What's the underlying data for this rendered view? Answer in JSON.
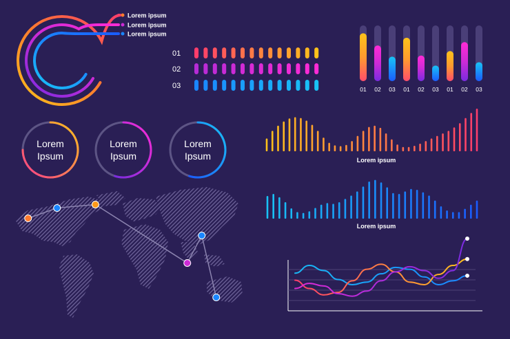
{
  "colors": {
    "background": "#2a1f55",
    "orange": "#ff7a2f",
    "yellow": "#ffc21a",
    "magenta": "#cc2bd6",
    "pink": "#ff3d8b",
    "blue": "#1a86ff",
    "cyan": "#19c3f5",
    "track": "#4a3f78",
    "map": "#5a4f86"
  },
  "chart_data": [
    {
      "type": "radial-bar",
      "legend": [
        {
          "name": "Lorem ipsum",
          "color": "#ff7a2f"
        },
        {
          "name": "Lorem ipsum",
          "color": "#cc2bd6"
        },
        {
          "name": "Lorem ipsum",
          "color": "#1a86ff"
        }
      ],
      "values": [
        0.9,
        0.8,
        0.72
      ]
    },
    {
      "type": "dot-progress",
      "rows": [
        {
          "label": "01",
          "dots": 14,
          "gradient": [
            "#ff3d6b",
            "#ffc21a"
          ]
        },
        {
          "label": "02",
          "dots": 14,
          "gradient": [
            "#b62bd6",
            "#ff2bd6"
          ]
        },
        {
          "label": "03",
          "dots": 14,
          "gradient": [
            "#1a86ff",
            "#19c3f5"
          ]
        }
      ]
    },
    {
      "type": "bar",
      "categories": [
        "01",
        "02",
        "03",
        "01",
        "02",
        "03",
        "01",
        "02",
        "03"
      ],
      "values": [
        0.86,
        0.64,
        0.44,
        0.78,
        0.46,
        0.28,
        0.54,
        0.7,
        0.34
      ],
      "colors": [
        "orange",
        "magenta",
        "blue",
        "orange",
        "magenta",
        "blue",
        "orange",
        "magenta",
        "blue"
      ],
      "ylim": [
        0,
        1
      ]
    },
    {
      "type": "donut",
      "items": [
        {
          "label_line1": "Lorem",
          "label_line2": "Ipsum",
          "value": 0.75,
          "gradient": [
            "#ff3d8b",
            "#ffc21a"
          ]
        },
        {
          "label_line1": "Lorem",
          "label_line2": "Ipsum",
          "value": 0.55,
          "gradient": [
            "#7a2be0",
            "#ff2bd6"
          ]
        },
        {
          "label_line1": "Lorem",
          "label_line2": "Ipsum",
          "value": 0.55,
          "gradient": [
            "#1a5cff",
            "#19c3f5"
          ]
        }
      ]
    },
    {
      "type": "bar",
      "caption": "Lorem ipsum",
      "values": [
        0.3,
        0.48,
        0.6,
        0.7,
        0.77,
        0.8,
        0.78,
        0.72,
        0.62,
        0.48,
        0.32,
        0.2,
        0.14,
        0.12,
        0.15,
        0.24,
        0.36,
        0.48,
        0.57,
        0.6,
        0.55,
        0.42,
        0.28,
        0.16,
        0.1,
        0.1,
        0.13,
        0.18,
        0.24,
        0.3,
        0.36,
        0.42,
        0.48,
        0.56,
        0.66,
        0.78,
        0.9,
        1.0
      ],
      "gradient": [
        "#ffc21a",
        "#ff3d6b"
      ],
      "ylim": [
        0,
        1
      ]
    },
    {
      "type": "bar",
      "caption": "Lorem ipsum",
      "values": [
        0.55,
        0.6,
        0.52,
        0.4,
        0.25,
        0.16,
        0.14,
        0.18,
        0.26,
        0.34,
        0.38,
        0.36,
        0.4,
        0.48,
        0.56,
        0.66,
        0.78,
        0.9,
        0.94,
        0.88,
        0.76,
        0.62,
        0.6,
        0.66,
        0.72,
        0.7,
        0.64,
        0.56,
        0.44,
        0.3,
        0.2,
        0.16,
        0.16,
        0.24,
        0.34,
        0.44
      ],
      "gradient": [
        "#19c3f5",
        "#1a5cff"
      ],
      "ylim": [
        0,
        1
      ]
    },
    {
      "type": "map",
      "route": [
        {
          "lon": -125,
          "lat": 42,
          "color": "#ff7a2f"
        },
        {
          "lon": -85,
          "lat": 54,
          "color": "#1a86ff"
        },
        {
          "lon": -32,
          "lat": 58,
          "color": "#ff9a1a"
        },
        {
          "lon": 95,
          "lat": -10,
          "color": "#cc2bd6"
        },
        {
          "lon": 115,
          "lat": 22,
          "color": "#1a86ff"
        },
        {
          "lon": 135,
          "lat": -50,
          "color": "#1a86ff"
        }
      ]
    },
    {
      "type": "line",
      "x": [
        0,
        1,
        2,
        3,
        4,
        5,
        6,
        7,
        8,
        9,
        10,
        11,
        12
      ],
      "series": [
        {
          "values": [
            0.46,
            0.58,
            0.5,
            0.36,
            0.28,
            0.32,
            0.45,
            0.55,
            0.52,
            0.4,
            0.28,
            0.34,
            0.42
          ],
          "color": "#19b8f5",
          "gradient": [
            "#19b8f5",
            "#1a86ff"
          ]
        },
        {
          "values": [
            0.35,
            0.22,
            0.12,
            0.16,
            0.34,
            0.52,
            0.6,
            0.48,
            0.32,
            0.28,
            0.44,
            0.58,
            0.68
          ],
          "color": "#ff7a2f",
          "gradient": [
            "#ff3d6b",
            "#ffc21a"
          ]
        },
        {
          "values": [
            0.22,
            0.3,
            0.26,
            0.14,
            0.1,
            0.18,
            0.34,
            0.48,
            0.56,
            0.5,
            0.38,
            0.5,
            1.0
          ],
          "color": "#cc2bd6",
          "gradient": [
            "#e02bd6",
            "#7a2be0"
          ]
        }
      ],
      "ylim": [
        0,
        1
      ]
    }
  ]
}
